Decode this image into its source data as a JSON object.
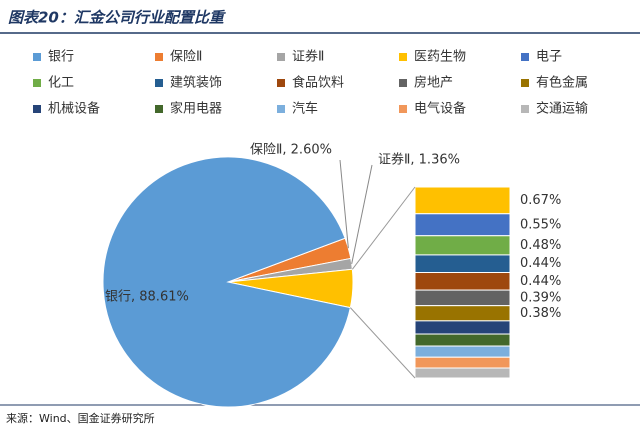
{
  "chart_data": {
    "type": "pie-of-bar",
    "title": "图表20：汇金公司行业配置比重",
    "source": "来源：Wind、国金证券研究所",
    "categories": [
      "银行",
      "保险Ⅱ",
      "证券Ⅱ",
      "医药生物",
      "电子",
      "化工",
      "建筑装饰",
      "食品饮料",
      "房地产",
      "有色金属",
      "机械设备",
      "家用电器",
      "汽车",
      "电气设备",
      "交通运输"
    ],
    "values": [
      88.61,
      2.6,
      1.36,
      0.67,
      0.55,
      0.48,
      0.44,
      0.44,
      0.39,
      0.38,
      0.33,
      0.3,
      0.28,
      0.27,
      0.25
    ],
    "value_labels": [
      "银行, 88.61%",
      "保险Ⅱ, 2.60%",
      "证券Ⅱ, 1.36%",
      "0.67%",
      "0.55%",
      "0.48%",
      "0.44%",
      "0.44%",
      "0.39%",
      "0.38%",
      null,
      null,
      null,
      null,
      null
    ],
    "colors": [
      "#5b9bd5",
      "#ed7d31",
      "#a5a5a5",
      "#ffc000",
      "#4472c4",
      "#70ad47",
      "#255e91",
      "#9e480e",
      "#636363",
      "#997300",
      "#264478",
      "#43682b",
      "#7cafdd",
      "#f1975a",
      "#b7b7b7"
    ],
    "legend": "top"
  }
}
